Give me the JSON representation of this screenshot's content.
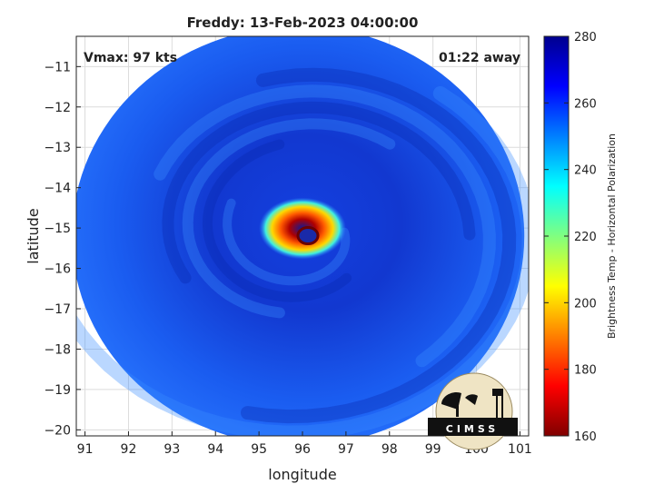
{
  "chart_data": {
    "type": "heatmap",
    "title": "Freddy: 13-Feb-2023 04:00:00",
    "xlabel": "longitude",
    "ylabel": "latitude",
    "xlim": [
      90.8,
      101.2
    ],
    "ylim": [
      -20.15,
      -10.25
    ],
    "xticks": [
      91,
      92,
      93,
      94,
      95,
      96,
      97,
      98,
      99,
      100,
      101
    ],
    "yticks": [
      -11,
      -12,
      -13,
      -14,
      -15,
      -16,
      -17,
      -18,
      -19,
      -20
    ],
    "annotations": {
      "vmax": "Vmax: 97 kts",
      "time_offset": "01:22 away"
    },
    "storm_center": {
      "lon": 96.0,
      "lat": -15.1
    },
    "swath": {
      "lon": 95.9,
      "lat": -15.2,
      "radius_deg": 5.2
    },
    "colorbar": {
      "label": "Brightness Temp - Horizontal Polarization",
      "range": [
        160,
        280
      ],
      "ticks": [
        160,
        180,
        200,
        220,
        240,
        260,
        280
      ],
      "colormap": "jet"
    },
    "logo_text": "CIMSS",
    "grid": true
  }
}
